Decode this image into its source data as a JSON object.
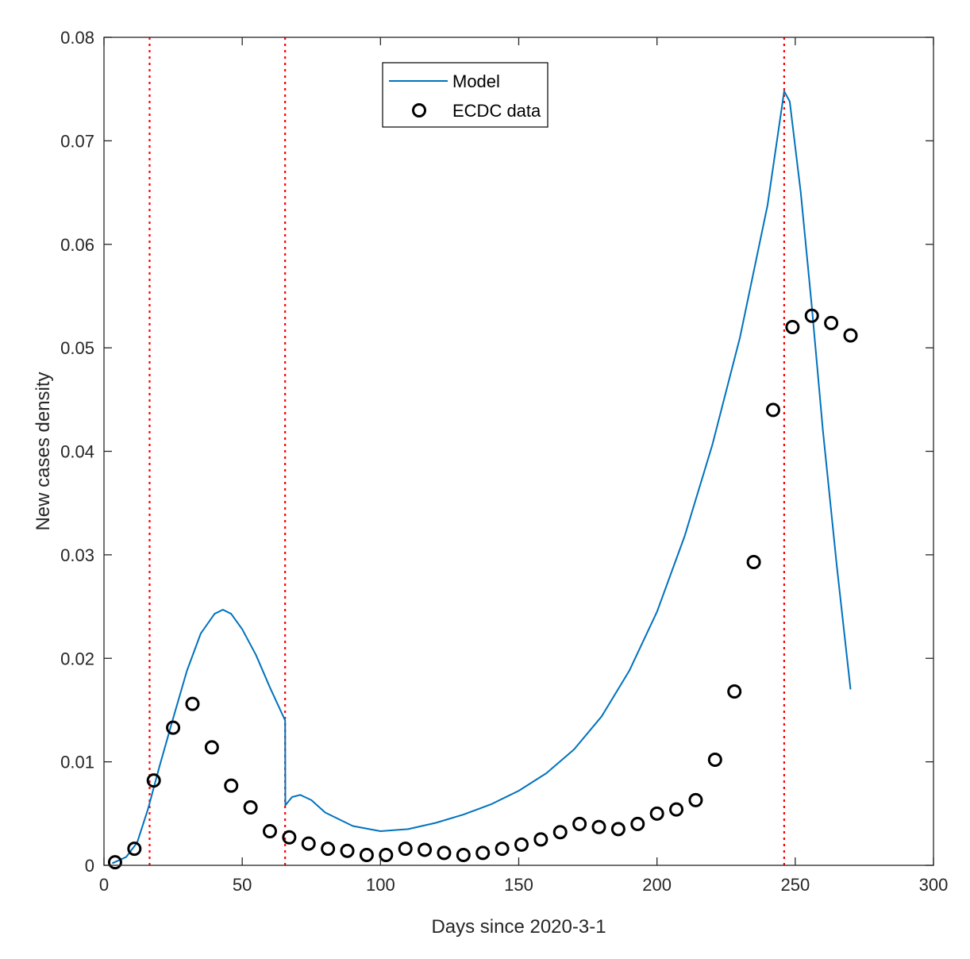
{
  "chart_data": {
    "type": "line",
    "title": "",
    "xlabel": "Days since 2020-3-1",
    "ylabel": "New cases density",
    "xlim": [
      0,
      300
    ],
    "ylim": [
      0,
      0.08
    ],
    "xticks": [
      0,
      50,
      100,
      150,
      200,
      250,
      300
    ],
    "xtick_labels": [
      "0",
      "50",
      "100",
      "150",
      "200",
      "250",
      "300"
    ],
    "yticks": [
      0,
      0.01,
      0.02,
      0.03,
      0.04,
      0.05,
      0.06,
      0.07,
      0.08
    ],
    "ytick_labels": [
      "0",
      "0.01",
      "0.02",
      "0.03",
      "0.04",
      "0.05",
      "0.06",
      "0.07",
      "0.08"
    ],
    "grid": false,
    "legend_position": "top-center",
    "vertical_lines": {
      "x": [
        16.5,
        65.5,
        246
      ],
      "color": "#ff0000",
      "style": "dotted"
    },
    "series": [
      {
        "name": "Model",
        "type": "line",
        "color": "#0072bd",
        "x": [
          3,
          8,
          12,
          16,
          20,
          25,
          30,
          35,
          40,
          43,
          46,
          50,
          55,
          60,
          65.5,
          65.6,
          68,
          71,
          75,
          80,
          90,
          100,
          110,
          120,
          130,
          140,
          150,
          160,
          170,
          180,
          190,
          200,
          210,
          220,
          230,
          240,
          246,
          248,
          252,
          256,
          260,
          265,
          270
        ],
        "y": [
          0.0002,
          0.0008,
          0.0022,
          0.0055,
          0.0095,
          0.0142,
          0.0188,
          0.0224,
          0.0243,
          0.0247,
          0.0243,
          0.0228,
          0.0203,
          0.0172,
          0.014,
          0.0058,
          0.0066,
          0.0068,
          0.0063,
          0.0051,
          0.0038,
          0.0033,
          0.0035,
          0.0041,
          0.0049,
          0.0059,
          0.0072,
          0.0089,
          0.0112,
          0.0144,
          0.0188,
          0.0245,
          0.0318,
          0.0406,
          0.051,
          0.0638,
          0.0748,
          0.0738,
          0.065,
          0.054,
          0.042,
          0.029,
          0.017
        ]
      },
      {
        "name": "ECDC data",
        "type": "scatter",
        "color": "#000000",
        "marker": "circle",
        "x": [
          4,
          11,
          18,
          25,
          32,
          39,
          46,
          53,
          60,
          67,
          74,
          81,
          88,
          95,
          102,
          109,
          116,
          123,
          130,
          137,
          144,
          151,
          158,
          165,
          172,
          179,
          186,
          193,
          200,
          207,
          214,
          221,
          228,
          235,
          242,
          249,
          256,
          263,
          270
        ],
        "y": [
          0.0003,
          0.0016,
          0.0082,
          0.0133,
          0.0156,
          0.0114,
          0.0077,
          0.0056,
          0.0033,
          0.0027,
          0.0021,
          0.0016,
          0.0014,
          0.001,
          0.001,
          0.0016,
          0.0015,
          0.0012,
          0.001,
          0.0012,
          0.0016,
          0.002,
          0.0025,
          0.0032,
          0.004,
          0.0037,
          0.0035,
          0.004,
          0.005,
          0.0054,
          0.0063,
          0.0102,
          0.0168,
          0.0293,
          0.044,
          0.052,
          0.0531,
          0.0524,
          0.0512
        ]
      }
    ]
  }
}
